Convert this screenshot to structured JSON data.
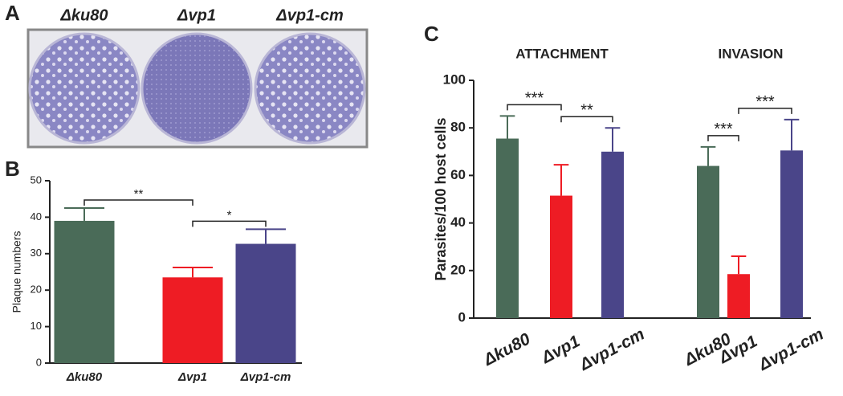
{
  "panel_labels": [
    "A",
    "B",
    "C"
  ],
  "plate_labels": [
    "Δku80",
    "Δvp1",
    "Δvp1-cm"
  ],
  "chart_data": [
    {
      "type": "bar",
      "y_label": "Plaque numbers",
      "categories": [
        "Δku80",
        "Δvp1",
        "Δvp1-cm"
      ],
      "values": [
        39,
        23.5,
        32.7
      ],
      "errors": [
        3.5,
        2.7,
        4
      ],
      "colors": [
        "#4a6b58",
        "#ee1c24",
        "#4a4589"
      ],
      "ylim": [
        0,
        50
      ],
      "yticks": [
        0,
        10,
        20,
        30,
        40,
        50
      ],
      "significance": [
        "**",
        "*"
      ]
    },
    {
      "type": "bar",
      "y_label": "Parasites/100 host cells",
      "groups": [
        "ATTACHMENT",
        "INVASION"
      ],
      "categories": [
        "Δku80",
        "Δvp1",
        "Δvp1-cm",
        "Δku80",
        "Δvp1",
        "Δvp1-cm"
      ],
      "values": [
        75.5,
        51.5,
        70,
        64,
        18.5,
        70.5
      ],
      "errors": [
        9.5,
        13,
        10,
        8,
        7.5,
        13
      ],
      "colors": [
        "#4a6b58",
        "#ee1c24",
        "#4a4589",
        "#4a6b58",
        "#ee1c24",
        "#4a4589"
      ],
      "ylim": [
        0,
        100
      ],
      "yticks": [
        0,
        20,
        40,
        60,
        80,
        100
      ],
      "significance": [
        "***",
        "**",
        "***",
        "***"
      ]
    }
  ]
}
